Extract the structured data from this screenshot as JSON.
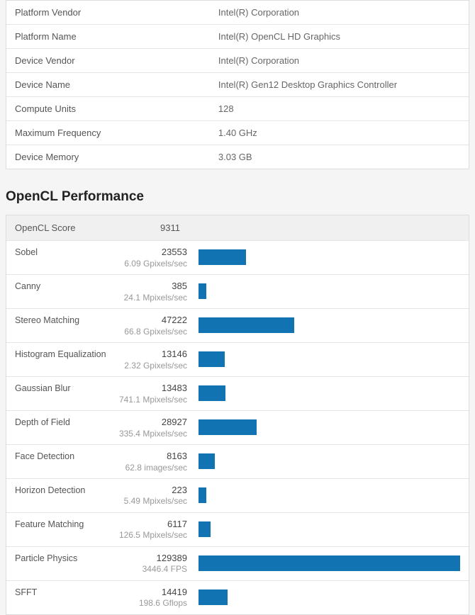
{
  "info_rows": [
    {
      "label": "Platform Vendor",
      "value": "Intel(R) Corporation"
    },
    {
      "label": "Platform Name",
      "value": "Intel(R) OpenCL HD Graphics"
    },
    {
      "label": "Device Vendor",
      "value": "Intel(R) Corporation"
    },
    {
      "label": "Device Name",
      "value": "Intel(R) Gen12 Desktop Graphics Controller"
    },
    {
      "label": "Compute Units",
      "value": "128"
    },
    {
      "label": "Maximum Frequency",
      "value": "1.40 GHz"
    },
    {
      "label": "Device Memory",
      "value": "3.03 GB"
    }
  ],
  "perf": {
    "title": "OpenCL Performance",
    "header_label": "OpenCL Score",
    "header_score": "9311",
    "bar_color": "#1273b3",
    "bar_max": 129389,
    "rows": [
      {
        "name": "Sobel",
        "score": 23553,
        "unit": "6.09 Gpixels/sec"
      },
      {
        "name": "Canny",
        "score": 385,
        "unit": "24.1 Mpixels/sec"
      },
      {
        "name": "Stereo Matching",
        "score": 47222,
        "unit": "66.8 Gpixels/sec"
      },
      {
        "name": "Histogram Equalization",
        "score": 13146,
        "unit": "2.32 Gpixels/sec"
      },
      {
        "name": "Gaussian Blur",
        "score": 13483,
        "unit": "741.1 Mpixels/sec"
      },
      {
        "name": "Depth of Field",
        "score": 28927,
        "unit": "335.4 Mpixels/sec"
      },
      {
        "name": "Face Detection",
        "score": 8163,
        "unit": "62.8 images/sec"
      },
      {
        "name": "Horizon Detection",
        "score": 223,
        "unit": "5.49 Mpixels/sec"
      },
      {
        "name": "Feature Matching",
        "score": 6117,
        "unit": "126.5 Mpixels/sec"
      },
      {
        "name": "Particle Physics",
        "score": 129389,
        "unit": "3446.4 FPS"
      },
      {
        "name": "SFFT",
        "score": 14419,
        "unit": "198.6 Gflops"
      }
    ]
  }
}
